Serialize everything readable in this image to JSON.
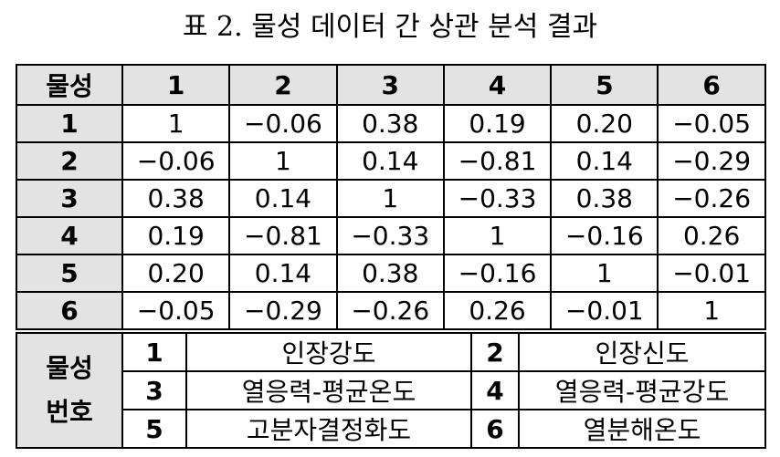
{
  "title": "표 2. 물성 데이터 간 상관 분석 결과",
  "table": {
    "corner": "물성",
    "columns": [
      "1",
      "2",
      "3",
      "4",
      "5",
      "6"
    ],
    "rows": [
      {
        "label": "1",
        "values": [
          "1",
          "−0.06",
          "0.38",
          "0.19",
          "0.20",
          "−0.05"
        ]
      },
      {
        "label": "2",
        "values": [
          "−0.06",
          "1",
          "0.14",
          "−0.81",
          "0.14",
          "−0.29"
        ]
      },
      {
        "label": "3",
        "values": [
          "0.38",
          "0.14",
          "1",
          "−0.33",
          "0.38",
          "−0.26"
        ]
      },
      {
        "label": "4",
        "values": [
          "0.19",
          "−0.81",
          "−0.33",
          "1",
          "−0.16",
          "0.26"
        ]
      },
      {
        "label": "5",
        "values": [
          "0.20",
          "0.14",
          "0.38",
          "−0.16",
          "1",
          "−0.01"
        ]
      },
      {
        "label": "6",
        "values": [
          "−0.05",
          "−0.29",
          "−0.26",
          "0.26",
          "−0.01",
          "1"
        ]
      }
    ]
  },
  "legend": {
    "header_line1": "물성",
    "header_line2": "번호",
    "items": [
      {
        "num": "1",
        "name": "인장강도"
      },
      {
        "num": "2",
        "name": "인장신도"
      },
      {
        "num": "3",
        "name": "열응력-평균온도"
      },
      {
        "num": "4",
        "name": "열응력-평균강도"
      },
      {
        "num": "5",
        "name": "고분자결정화도"
      },
      {
        "num": "6",
        "name": "열분해온도"
      }
    ]
  }
}
